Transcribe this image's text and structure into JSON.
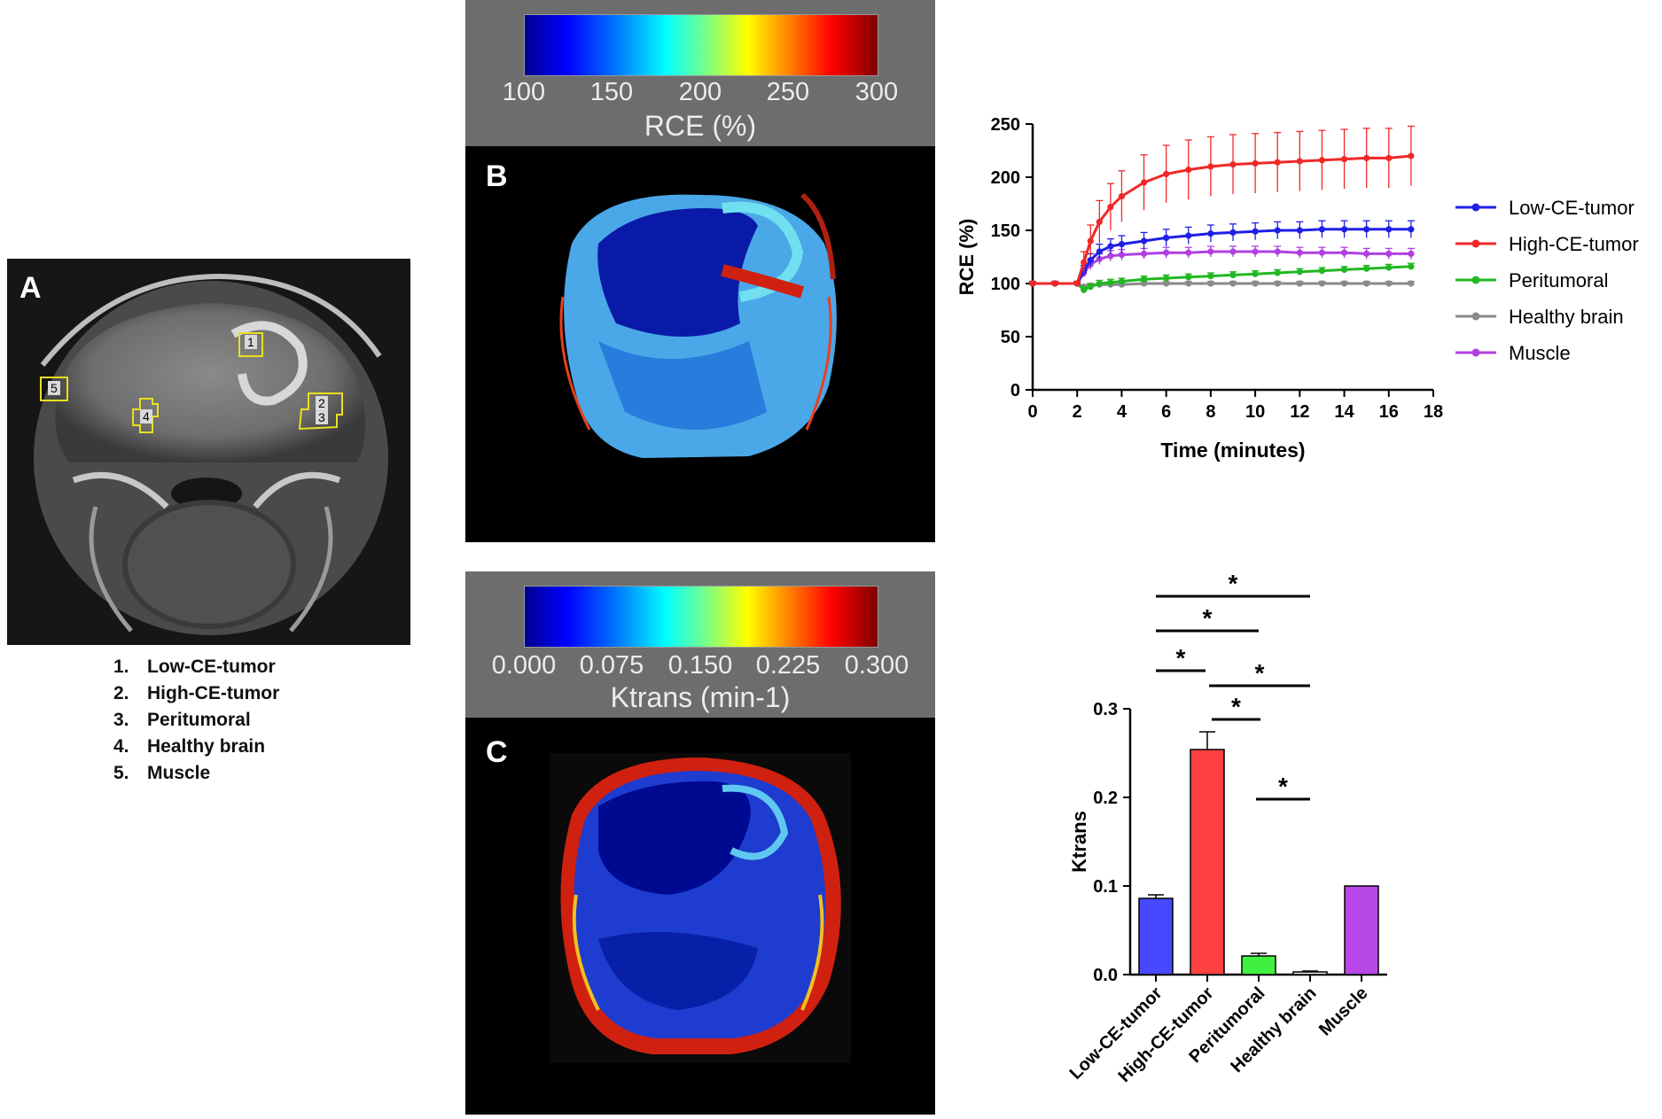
{
  "panels": {
    "a": {
      "letter": "A",
      "roi_markers": [
        "1",
        "2",
        "3",
        "4",
        "5"
      ],
      "roi_list": [
        {
          "num": "1.",
          "label": "Low-CE-tumor"
        },
        {
          "num": "2.",
          "label": "High-CE-tumor"
        },
        {
          "num": "3.",
          "label": "Peritumoral"
        },
        {
          "num": "4.",
          "label": "Healthy brain"
        },
        {
          "num": "5.",
          "label": "Muscle"
        }
      ]
    },
    "b": {
      "letter": "B",
      "colorbar": {
        "ticks": [
          "100",
          "150",
          "200",
          "250",
          "300"
        ],
        "title": "RCE (%)"
      }
    },
    "c": {
      "letter": "C",
      "colorbar": {
        "ticks": [
          "0.000",
          "0.075",
          "0.150",
          "0.225",
          "0.300"
        ],
        "title": "Ktrans (min-1)"
      }
    }
  },
  "colors": {
    "low_ce_tumor": "#1f1fe6",
    "high_ce_tumor": "#f02828",
    "peritumoral": "#22b822",
    "healthy_brain": "#8a8a8a",
    "muscle": "#b040e0",
    "roi_outline": "#e8e020"
  },
  "chart_data": [
    {
      "type": "line",
      "title": "",
      "xlabel": "Time (minutes)",
      "ylabel": "RCE (%)",
      "xlim": [
        0,
        18
      ],
      "ylim": [
        0,
        250
      ],
      "xticks": [
        "0",
        "2",
        "4",
        "6",
        "8",
        "10",
        "12",
        "14",
        "16",
        "18"
      ],
      "yticks": [
        "0",
        "50",
        "100",
        "150",
        "200",
        "250"
      ],
      "legend_position": "right",
      "series": [
        {
          "name": "Low-CE-tumor",
          "color": "#1f1fe6",
          "x": [
            0,
            1,
            2,
            2.3,
            2.6,
            3,
            3.5,
            4,
            5,
            6,
            7,
            8,
            9,
            10,
            11,
            12,
            13,
            14,
            15,
            16,
            17
          ],
          "y": [
            100,
            100,
            100,
            112,
            122,
            130,
            135,
            137,
            140,
            143,
            145,
            147,
            148,
            149,
            150,
            150,
            151,
            151,
            151,
            151,
            151
          ],
          "err": [
            2,
            2,
            2,
            5,
            6,
            7,
            7,
            8,
            8,
            8,
            8,
            8,
            8,
            8,
            8,
            8,
            8,
            8,
            8,
            8,
            8
          ]
        },
        {
          "name": "High-CE-tumor",
          "color": "#f02828",
          "x": [
            0,
            1,
            2,
            2.3,
            2.6,
            3,
            3.5,
            4,
            5,
            6,
            7,
            8,
            9,
            10,
            11,
            12,
            13,
            14,
            15,
            16,
            17
          ],
          "y": [
            100,
            100,
            100,
            120,
            140,
            158,
            172,
            182,
            195,
            203,
            207,
            210,
            212,
            213,
            214,
            215,
            216,
            217,
            218,
            218,
            220
          ],
          "err": [
            2,
            2,
            2,
            10,
            15,
            20,
            22,
            24,
            26,
            27,
            28,
            28,
            28,
            28,
            28,
            28,
            28,
            28,
            28,
            28,
            28
          ]
        },
        {
          "name": "Peritumoral",
          "color": "#22b822",
          "x": [
            0,
            1,
            2,
            2.3,
            2.6,
            3,
            3.5,
            4,
            5,
            6,
            7,
            8,
            9,
            10,
            11,
            12,
            13,
            14,
            15,
            16,
            17
          ],
          "y": [
            100,
            100,
            100,
            94,
            97,
            100,
            101,
            102,
            104,
            105,
            106,
            107,
            108,
            109,
            110,
            111,
            112,
            113,
            114,
            115,
            116
          ],
          "err": [
            2,
            2,
            2,
            3,
            3,
            3,
            3,
            3,
            3,
            3,
            3,
            3,
            3,
            3,
            3,
            3,
            3,
            3,
            3,
            3,
            3
          ]
        },
        {
          "name": "Healthy brain",
          "color": "#8a8a8a",
          "x": [
            0,
            1,
            2,
            2.3,
            2.6,
            3,
            3.5,
            4,
            5,
            6,
            7,
            8,
            9,
            10,
            11,
            12,
            13,
            14,
            15,
            16,
            17
          ],
          "y": [
            100,
            100,
            100,
            97,
            98,
            99,
            99,
            99,
            100,
            100,
            100,
            100,
            100,
            100,
            100,
            100,
            100,
            100,
            100,
            100,
            100
          ],
          "err": [
            1,
            1,
            1,
            2,
            2,
            2,
            2,
            2,
            2,
            2,
            2,
            2,
            2,
            2,
            2,
            2,
            2,
            2,
            2,
            2,
            2
          ]
        },
        {
          "name": "Muscle",
          "color": "#b040e0",
          "x": [
            0,
            1,
            2,
            2.3,
            2.6,
            3,
            3.5,
            4,
            5,
            6,
            7,
            8,
            9,
            10,
            11,
            12,
            13,
            14,
            15,
            16,
            17
          ],
          "y": [
            100,
            100,
            100,
            110,
            118,
            123,
            126,
            127,
            128,
            129,
            129,
            130,
            130,
            130,
            130,
            129,
            129,
            129,
            128,
            128,
            128
          ],
          "err": [
            2,
            2,
            2,
            4,
            5,
            5,
            5,
            5,
            5,
            5,
            5,
            5,
            5,
            5,
            5,
            5,
            5,
            5,
            5,
            5,
            5
          ]
        }
      ]
    },
    {
      "type": "bar",
      "title": "",
      "xlabel": "",
      "ylabel": "Ktrans",
      "ylim": [
        0,
        0.3
      ],
      "yticks": [
        "0.0",
        "0.1",
        "0.2",
        "0.3"
      ],
      "categories": [
        "Low-CE-tumor",
        "High-CE-tumor",
        "Peritumoral",
        "Healthy brain",
        "Muscle"
      ],
      "values": [
        0.086,
        0.254,
        0.021,
        0.003,
        0.1
      ],
      "errors": [
        0.004,
        0.02,
        0.003,
        0.001,
        0
      ],
      "colors": [
        "#4848ff",
        "#ff4040",
        "#40f040",
        "#f0f0f0",
        "#b848e8"
      ],
      "significance": [
        {
          "from": "Low-CE-tumor",
          "to": "Healthy brain",
          "label": "*"
        },
        {
          "from": "Low-CE-tumor",
          "to": "Peritumoral",
          "label": "*"
        },
        {
          "from": "Low-CE-tumor",
          "to": "High-CE-tumor",
          "label": "*"
        },
        {
          "from": "High-CE-tumor",
          "to": "Healthy brain",
          "label": "*"
        },
        {
          "from": "High-CE-tumor",
          "to": "Peritumoral",
          "label": "*"
        },
        {
          "from": "Peritumoral",
          "to": "Healthy brain",
          "label": "*"
        }
      ]
    }
  ]
}
